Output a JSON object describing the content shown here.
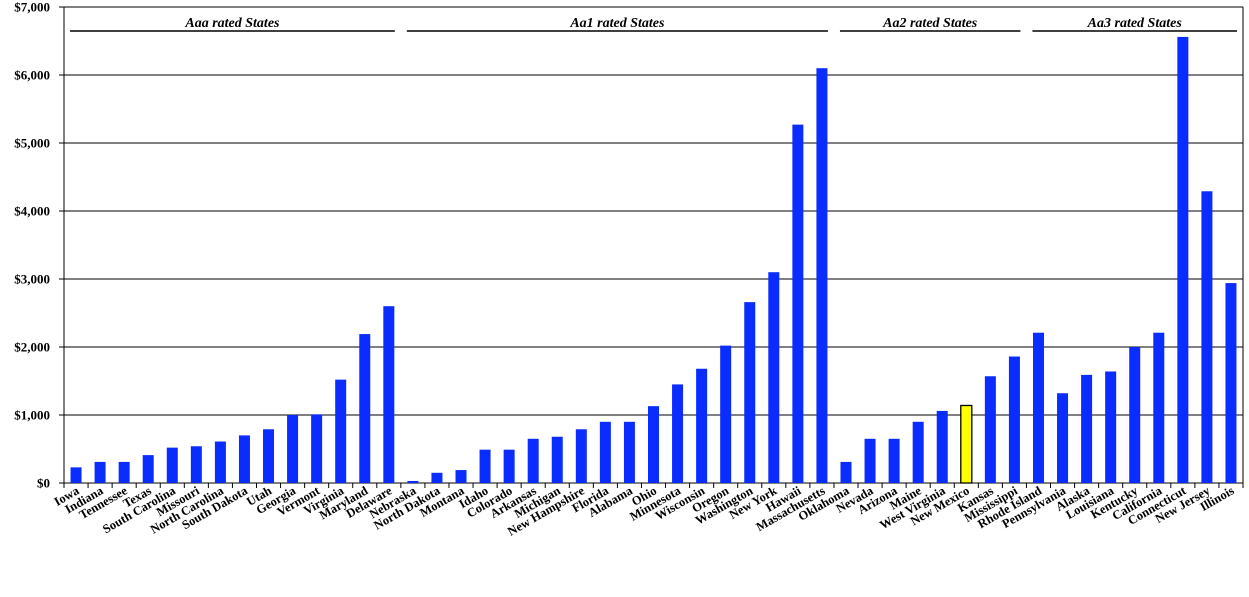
{
  "chart_data": {
    "type": "bar",
    "title": "",
    "xlabel": "",
    "ylabel": "",
    "ylim": [
      0,
      7000
    ],
    "y_ticks": [
      "$0",
      "$1,000",
      "$2,000",
      "$3,000",
      "$4,000",
      "$5,000",
      "$6,000",
      "$7,000"
    ],
    "grid": "horizontal",
    "categories": [
      "Iowa",
      "Indiana",
      "Tennessee",
      "Texas",
      "South Carolina",
      "Missouri",
      "North Carolina",
      "South Dakota",
      "Utah",
      "Georgia",
      "Vermont",
      "Virginia",
      "Maryland",
      "Delaware",
      "Nebraska",
      "North Dakota",
      "Montana",
      "Idaho",
      "Colorado",
      "Arkansas",
      "Michigan",
      "New Hampshire",
      "Florida",
      "Alabama",
      "Ohio",
      "Minnesota",
      "Wisconsin",
      "Oregon",
      "Washington",
      "New York",
      "Hawaii",
      "Massachusetts",
      "Oklahoma",
      "Nevada",
      "Arizona",
      "Maine",
      "West Virginia",
      "New Mexico",
      "Kansas",
      "Mississippi",
      "Rhode Island",
      "Pennsylvania",
      "Alaska",
      "Louisiana",
      "Kentucky",
      "California",
      "Connecticut",
      "New Jersey",
      "Illinois"
    ],
    "values": [
      230,
      310,
      310,
      410,
      520,
      540,
      610,
      700,
      790,
      1000,
      1010,
      1520,
      2190,
      2600,
      30,
      150,
      190,
      490,
      490,
      650,
      680,
      790,
      900,
      900,
      1130,
      1450,
      1680,
      2020,
      2660,
      3100,
      5270,
      6100,
      310,
      650,
      650,
      900,
      1060,
      1140,
      1570,
      1860,
      2210,
      1320,
      1590,
      1640,
      2000,
      2210,
      6560,
      4290,
      2940
    ],
    "highlight_category": "New Mexico",
    "colors": {
      "bar": "#0a2cff",
      "highlight": "#ffff00",
      "bar_edge": "#000000"
    },
    "groups": [
      {
        "label": "Aaa rated States",
        "first": 0,
        "last": 13
      },
      {
        "label": "Aa1 rated States",
        "first": 14,
        "last": 31
      },
      {
        "label": "Aa2 rated States",
        "first": 32,
        "last": 39
      },
      {
        "label": "Aa3 rated States",
        "first": 40,
        "last": 48
      }
    ]
  }
}
